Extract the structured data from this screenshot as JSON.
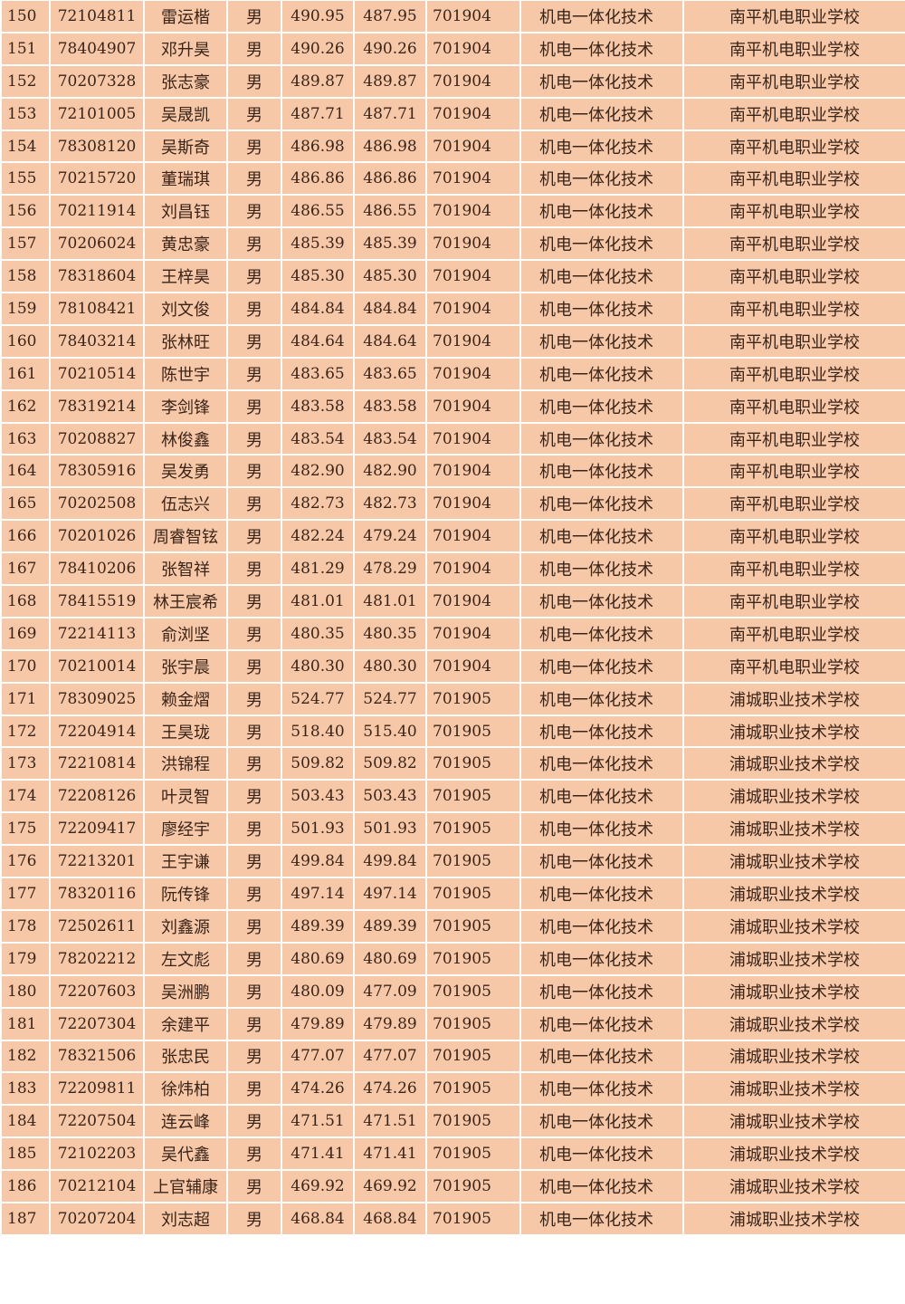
{
  "table": {
    "rows": [
      [
        "150",
        "72104811",
        "雷运楷",
        "男",
        "490.95",
        "487.95",
        "701904",
        "机电一体化技术",
        "南平机电职业学校"
      ],
      [
        "151",
        "78404907",
        "邓升昊",
        "男",
        "490.26",
        "490.26",
        "701904",
        "机电一体化技术",
        "南平机电职业学校"
      ],
      [
        "152",
        "70207328",
        "张志豪",
        "男",
        "489.87",
        "489.87",
        "701904",
        "机电一体化技术",
        "南平机电职业学校"
      ],
      [
        "153",
        "72101005",
        "吴晟凯",
        "男",
        "487.71",
        "487.71",
        "701904",
        "机电一体化技术",
        "南平机电职业学校"
      ],
      [
        "154",
        "78308120",
        "吴斯奇",
        "男",
        "486.98",
        "486.98",
        "701904",
        "机电一体化技术",
        "南平机电职业学校"
      ],
      [
        "155",
        "70215720",
        "董瑞琪",
        "男",
        "486.86",
        "486.86",
        "701904",
        "机电一体化技术",
        "南平机电职业学校"
      ],
      [
        "156",
        "70211914",
        "刘昌钰",
        "男",
        "486.55",
        "486.55",
        "701904",
        "机电一体化技术",
        "南平机电职业学校"
      ],
      [
        "157",
        "70206024",
        "黄忠豪",
        "男",
        "485.39",
        "485.39",
        "701904",
        "机电一体化技术",
        "南平机电职业学校"
      ],
      [
        "158",
        "78318604",
        "王梓昊",
        "男",
        "485.30",
        "485.30",
        "701904",
        "机电一体化技术",
        "南平机电职业学校"
      ],
      [
        "159",
        "78108421",
        "刘文俊",
        "男",
        "484.84",
        "484.84",
        "701904",
        "机电一体化技术",
        "南平机电职业学校"
      ],
      [
        "160",
        "78403214",
        "张林旺",
        "男",
        "484.64",
        "484.64",
        "701904",
        "机电一体化技术",
        "南平机电职业学校"
      ],
      [
        "161",
        "70210514",
        "陈世宇",
        "男",
        "483.65",
        "483.65",
        "701904",
        "机电一体化技术",
        "南平机电职业学校"
      ],
      [
        "162",
        "78319214",
        "李剑锋",
        "男",
        "483.58",
        "483.58",
        "701904",
        "机电一体化技术",
        "南平机电职业学校"
      ],
      [
        "163",
        "70208827",
        "林俊鑫",
        "男",
        "483.54",
        "483.54",
        "701904",
        "机电一体化技术",
        "南平机电职业学校"
      ],
      [
        "164",
        "78305916",
        "吴发勇",
        "男",
        "482.90",
        "482.90",
        "701904",
        "机电一体化技术",
        "南平机电职业学校"
      ],
      [
        "165",
        "70202508",
        "伍志兴",
        "男",
        "482.73",
        "482.73",
        "701904",
        "机电一体化技术",
        "南平机电职业学校"
      ],
      [
        "166",
        "70201026",
        "周睿智铉",
        "男",
        "482.24",
        "479.24",
        "701904",
        "机电一体化技术",
        "南平机电职业学校"
      ],
      [
        "167",
        "78410206",
        "张智祥",
        "男",
        "481.29",
        "478.29",
        "701904",
        "机电一体化技术",
        "南平机电职业学校"
      ],
      [
        "168",
        "78415519",
        "林王宸希",
        "男",
        "481.01",
        "481.01",
        "701904",
        "机电一体化技术",
        "南平机电职业学校"
      ],
      [
        "169",
        "72214113",
        "俞浏坚",
        "男",
        "480.35",
        "480.35",
        "701904",
        "机电一体化技术",
        "南平机电职业学校"
      ],
      [
        "170",
        "70210014",
        "张宇晨",
        "男",
        "480.30",
        "480.30",
        "701904",
        "机电一体化技术",
        "南平机电职业学校"
      ],
      [
        "171",
        "78309025",
        "赖金熠",
        "男",
        "524.77",
        "524.77",
        "701905",
        "机电一体化技术",
        "浦城职业技术学校"
      ],
      [
        "172",
        "72204914",
        "王昊珑",
        "男",
        "518.40",
        "515.40",
        "701905",
        "机电一体化技术",
        "浦城职业技术学校"
      ],
      [
        "173",
        "72210814",
        "洪锦程",
        "男",
        "509.82",
        "509.82",
        "701905",
        "机电一体化技术",
        "浦城职业技术学校"
      ],
      [
        "174",
        "72208126",
        "叶灵智",
        "男",
        "503.43",
        "503.43",
        "701905",
        "机电一体化技术",
        "浦城职业技术学校"
      ],
      [
        "175",
        "72209417",
        "廖经宇",
        "男",
        "501.93",
        "501.93",
        "701905",
        "机电一体化技术",
        "浦城职业技术学校"
      ],
      [
        "176",
        "72213201",
        "王宇谦",
        "男",
        "499.84",
        "499.84",
        "701905",
        "机电一体化技术",
        "浦城职业技术学校"
      ],
      [
        "177",
        "78320116",
        "阮传锋",
        "男",
        "497.14",
        "497.14",
        "701905",
        "机电一体化技术",
        "浦城职业技术学校"
      ],
      [
        "178",
        "72502611",
        "刘鑫源",
        "男",
        "489.39",
        "489.39",
        "701905",
        "机电一体化技术",
        "浦城职业技术学校"
      ],
      [
        "179",
        "78202212",
        "左文彪",
        "男",
        "480.69",
        "480.69",
        "701905",
        "机电一体化技术",
        "浦城职业技术学校"
      ],
      [
        "180",
        "72207603",
        "吴洲鹏",
        "男",
        "480.09",
        "477.09",
        "701905",
        "机电一体化技术",
        "浦城职业技术学校"
      ],
      [
        "181",
        "72207304",
        "余建平",
        "男",
        "479.89",
        "479.89",
        "701905",
        "机电一体化技术",
        "浦城职业技术学校"
      ],
      [
        "182",
        "78321506",
        "张忠民",
        "男",
        "477.07",
        "477.07",
        "701905",
        "机电一体化技术",
        "浦城职业技术学校"
      ],
      [
        "183",
        "72209811",
        "徐炜柏",
        "男",
        "474.26",
        "474.26",
        "701905",
        "机电一体化技术",
        "浦城职业技术学校"
      ],
      [
        "184",
        "72207504",
        "连云峰",
        "男",
        "471.51",
        "471.51",
        "701905",
        "机电一体化技术",
        "浦城职业技术学校"
      ],
      [
        "185",
        "72102203",
        "吴代鑫",
        "男",
        "471.41",
        "471.41",
        "701905",
        "机电一体化技术",
        "浦城职业技术学校"
      ],
      [
        "186",
        "70212104",
        "上官辅康",
        "男",
        "469.92",
        "469.92",
        "701905",
        "机电一体化技术",
        "浦城职业技术学校"
      ],
      [
        "187",
        "70207204",
        "刘志超",
        "男",
        "468.84",
        "468.84",
        "701905",
        "机电一体化技术",
        "浦城职业技术学校"
      ]
    ]
  },
  "colors": {
    "cell_background": "#f6c8a8",
    "grid_line": "#ffffff",
    "text": "#3a2418"
  }
}
